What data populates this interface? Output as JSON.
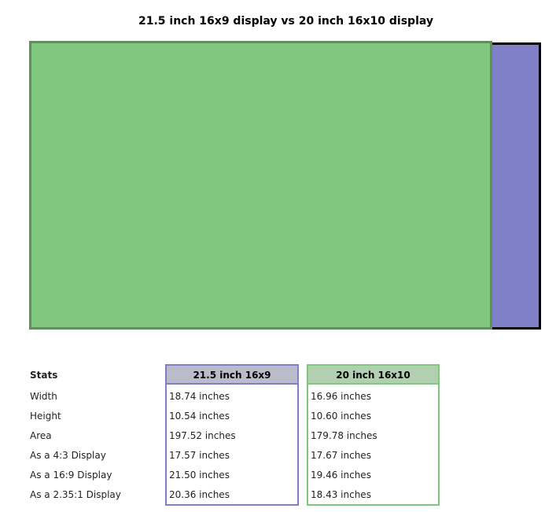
{
  "title": "21.5 inch 16x9 display vs 20 inch 16x10 display",
  "table": {
    "header": [
      "Stats",
      "21.5 inch 16x9",
      "20 inch 16x10"
    ],
    "rows": [
      [
        "Width",
        "18.74 inches",
        "16.96 inches"
      ],
      [
        "Height",
        "10.54 inches",
        "10.60 inches"
      ],
      [
        "Area",
        "197.52 inches",
        "179.78 inches"
      ],
      [
        "As a 4:3 Display",
        "17.57 inches",
        "17.67 inches"
      ],
      [
        "As a 16:9 Display",
        "21.50 inches",
        "19.46 inches"
      ],
      [
        "As a 2.35:1 Display",
        "20.36 inches",
        "18.43 inches"
      ]
    ]
  }
}
